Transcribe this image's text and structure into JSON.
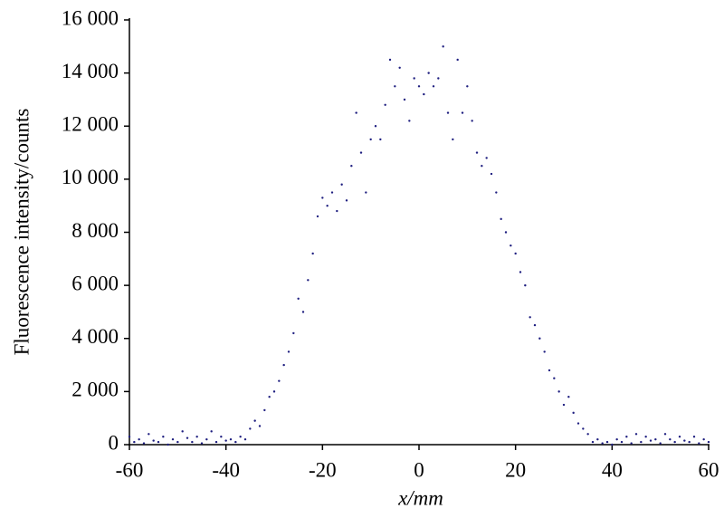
{
  "chart_data": {
    "type": "scatter",
    "xlabel": "x/mm",
    "ylabel": "Fluorescence intensity/counts",
    "xlim": [
      -60,
      60
    ],
    "xticks": [
      -60,
      -40,
      -20,
      0,
      20,
      40,
      60
    ],
    "ylim": [
      0,
      16000
    ],
    "yticks": [
      0,
      {
        "value": 2000,
        "label": "2 000"
      },
      {
        "value": 4000,
        "label": "4 000"
      },
      {
        "value": 6000,
        "label": "6 000"
      },
      {
        "value": 8000,
        "label": "8 000"
      },
      {
        "value": 10000,
        "label": "10 000"
      },
      {
        "value": 12000,
        "label": "12 000"
      },
      {
        "value": 14000,
        "label": "14 000"
      },
      {
        "value": 16000,
        "label": "16 000"
      }
    ],
    "color": "#1f1f80",
    "x": [
      -60,
      -59,
      -58,
      -57,
      -56,
      -55,
      -54,
      -53,
      -52,
      -51,
      -50,
      -49,
      -48,
      -47,
      -46,
      -45,
      -44,
      -43,
      -42,
      -41,
      -40,
      -39,
      -38,
      -37,
      -36,
      -35,
      -34,
      -33,
      -32,
      -31,
      -30,
      -29,
      -28,
      -27,
      -26,
      -25,
      -24,
      -23,
      -22,
      -21,
      -20,
      -19,
      -18,
      -17,
      -16,
      -15,
      -14,
      -13,
      -12,
      -11,
      -10,
      -9,
      -8,
      -7,
      -6,
      -5,
      -4,
      -3,
      -2,
      -1,
      0,
      1,
      2,
      3,
      4,
      5,
      6,
      7,
      8,
      9,
      10,
      11,
      12,
      13,
      14,
      15,
      16,
      17,
      18,
      19,
      20,
      21,
      22,
      23,
      24,
      25,
      26,
      27,
      28,
      29,
      30,
      31,
      32,
      33,
      34,
      35,
      36,
      37,
      38,
      39,
      40,
      41,
      42,
      43,
      44,
      45,
      46,
      47,
      48,
      49,
      50,
      51,
      52,
      53,
      54,
      55,
      56,
      57,
      58,
      59,
      60
    ],
    "values": [
      300,
      100,
      200,
      50,
      400,
      150,
      100,
      300,
      0,
      200,
      100,
      500,
      250,
      100,
      300,
      50,
      200,
      500,
      100,
      300,
      150,
      200,
      100,
      300,
      200,
      600,
      900,
      700,
      1300,
      1800,
      2000,
      2400,
      3000,
      3500,
      4200,
      5500,
      5000,
      6200,
      7200,
      8600,
      9300,
      9000,
      9500,
      8800,
      9800,
      9200,
      10500,
      12500,
      11000,
      9500,
      11500,
      12000,
      11500,
      12800,
      14500,
      13500,
      14200,
      13000,
      12200,
      13800,
      13500,
      13200,
      14000,
      13500,
      13800,
      15000,
      12500,
      11500,
      14500,
      12500,
      13500,
      12200,
      11000,
      10500,
      10800,
      10200,
      9500,
      8500,
      8000,
      7500,
      7200,
      6500,
      6000,
      4800,
      4500,
      4000,
      3500,
      2800,
      2500,
      2000,
      1500,
      1800,
      1200,
      800,
      600,
      400,
      100,
      200,
      50,
      100,
      0,
      200,
      100,
      300,
      50,
      400,
      100,
      300,
      150,
      200,
      50,
      400,
      200,
      100,
      300,
      150,
      100,
      300,
      50,
      200,
      100
    ]
  }
}
